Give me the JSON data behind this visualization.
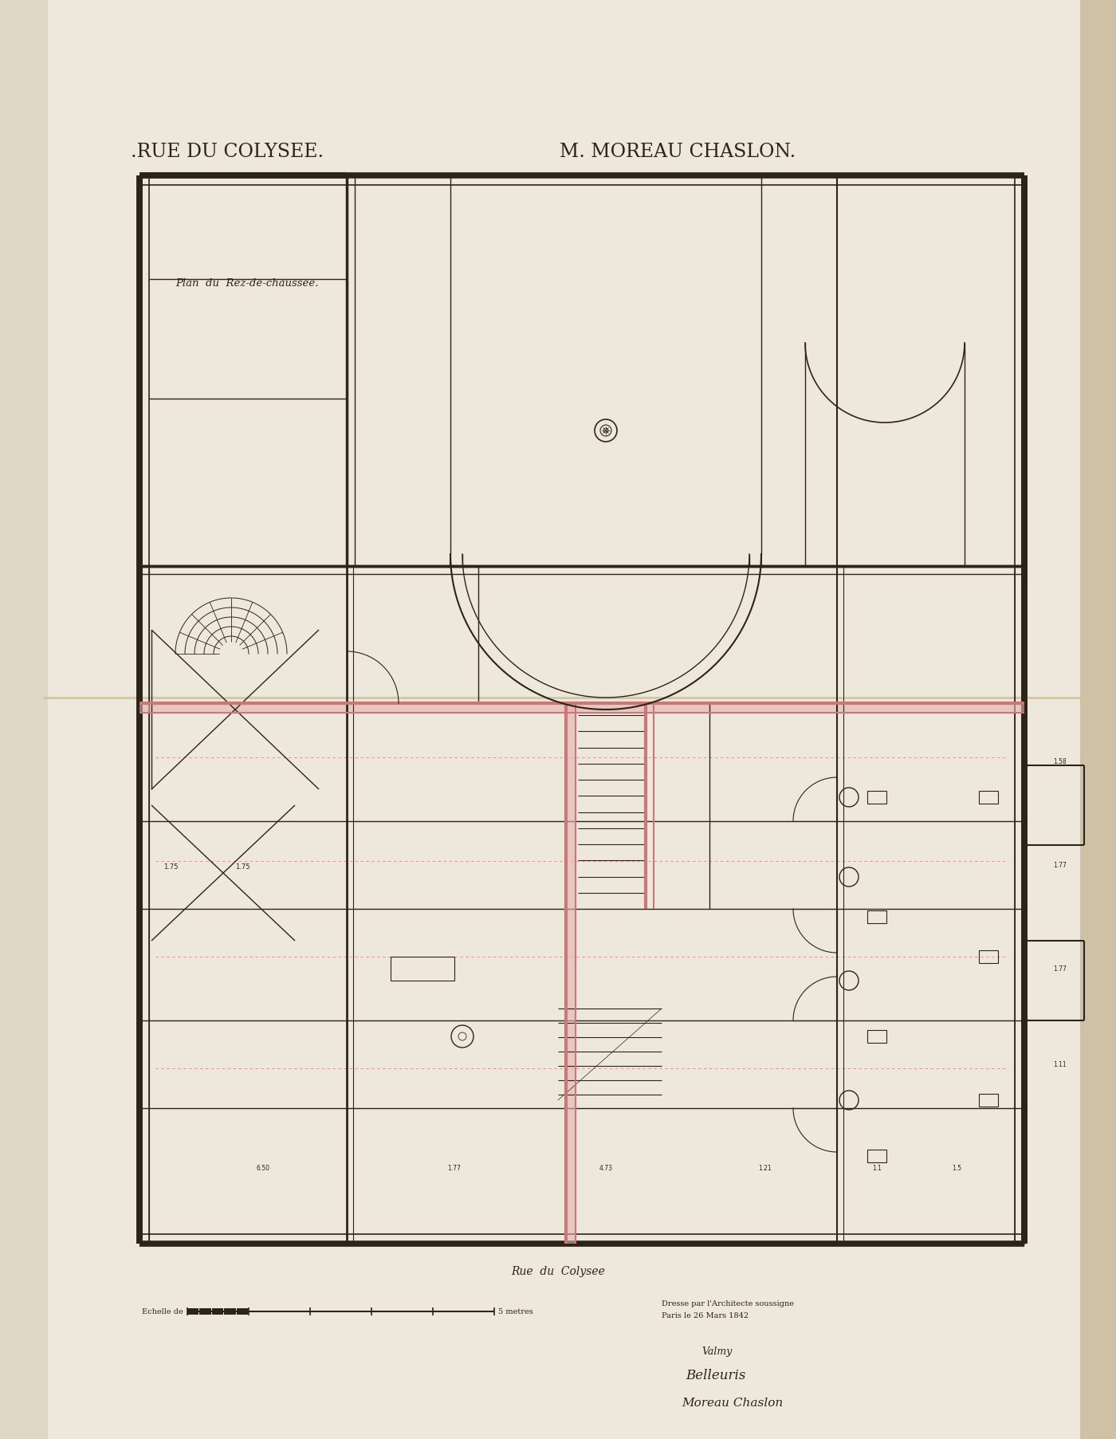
{
  "bg_color": "#ede8db",
  "paper_color": "#ede8db",
  "dark": "#2c2416",
  "pink": "#c87878",
  "thin": "#6a5a48",
  "title_left": ".RUE DU COLYSEE.",
  "title_right": "M. MOREAU CHASLON.",
  "plan_label": "Plan  du  Rez-de-chaussee.",
  "bottom_street": "Rue  du  Colysee",
  "scale_text": "Echelle de",
  "metres_text": "5 metres",
  "date_text": "Dresse par l'Architecte soussigne",
  "date_text2": "Paris le 26 Mars 1842",
  "sig1": "Valmy",
  "sig2": "Belleuris",
  "sig3": "Moreau Chaslon",
  "fig_width": 14.0,
  "fig_height": 18.05
}
